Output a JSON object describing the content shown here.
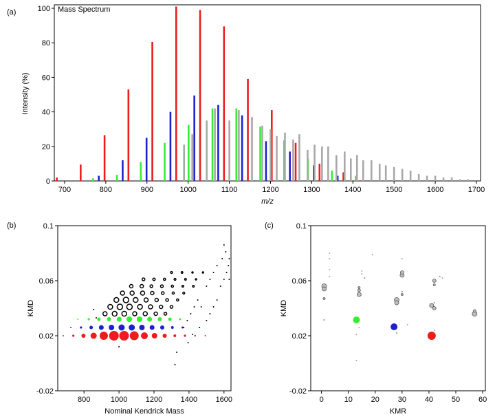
{
  "chart_data": [
    {
      "panel_label": "(a)",
      "type": "bar",
      "title": "Mass Spectrum",
      "xlabel": "m/z",
      "ylabel": "Intensity (%)",
      "xlim": [
        675,
        1710
      ],
      "ylim": [
        0,
        102
      ],
      "xticks": [
        700,
        800,
        900,
        1000,
        1100,
        1200,
        1300,
        1400,
        1500,
        1600,
        1700
      ],
      "yticks": [
        0,
        20,
        40,
        60,
        80,
        100
      ],
      "grid": false,
      "colors": {
        "red": "#ee1c1c",
        "blue": "#1f1fd0",
        "green": "#33ee33",
        "gray": "#a8a8a8"
      },
      "series": [
        {
          "color": "red",
          "x": [
            681,
            739,
            797,
            855,
            913,
            971,
            1029,
            1087,
            1145,
            1203,
            1261,
            1319,
            1377
          ],
          "values": [
            2,
            9.5,
            26.5,
            53,
            80.5,
            101,
            99,
            89.5,
            59,
            41,
            22,
            10,
            5
          ]
        },
        {
          "color": "blue",
          "x": [
            783,
            841,
            899,
            957,
            1015,
            1073,
            1131,
            1189,
            1247,
            1305,
            1363
          ],
          "values": [
            3,
            12,
            25,
            40,
            49.5,
            44,
            38,
            23,
            17,
            9,
            3
          ]
        },
        {
          "color": "green",
          "x": [
            769,
            827,
            885,
            943,
            1001,
            1059,
            1117,
            1175,
            1233,
            1291,
            1349,
            1407
          ],
          "values": [
            1.5,
            3.5,
            11,
            22,
            32.5,
            42,
            42,
            31.5,
            23.5,
            13,
            6,
            3
          ]
        },
        {
          "color": "gray",
          "x": [
            990,
            1010,
            1045,
            1065,
            1100,
            1123,
            1155,
            1180,
            1200,
            1215,
            1235,
            1255,
            1270,
            1290,
            1307,
            1325,
            1340,
            1360,
            1380,
            1395,
            1410,
            1425,
            1445,
            1465,
            1480,
            1500,
            1520,
            1540,
            1560,
            1580,
            1600,
            1620,
            1640,
            1660,
            1680
          ],
          "values": [
            21,
            27,
            35,
            42,
            35,
            41,
            37,
            32,
            30,
            26,
            28,
            24,
            27,
            18,
            21,
            20,
            20,
            15,
            17,
            13,
            15,
            12,
            12,
            10,
            9,
            8,
            7,
            6,
            4,
            3,
            3,
            2,
            2,
            1,
            1
          ]
        }
      ]
    },
    {
      "panel_label": "(b)",
      "type": "scatter",
      "xlabel": "Nominal Kendrick Mass",
      "ylabel": "KMD",
      "xlim": [
        650,
        1640
      ],
      "ylim": [
        -0.02,
        0.1
      ],
      "xticks": [
        800,
        1000,
        1200,
        1400,
        1600
      ],
      "yticks": [
        -0.02,
        0.02,
        0.06,
        0.1
      ],
      "colors": {
        "red": "#ee1c1c",
        "blue": "#1f1fd0",
        "green": "#33ee33",
        "gray": "#a8a8a8",
        "black": "#000000"
      },
      "series": [
        {
          "color": "red",
          "points": [
            [
              681,
              0.02,
              1
            ],
            [
              739,
              0.02,
              1.6
            ],
            [
              797,
              0.02,
              3
            ],
            [
              855,
              0.02,
              4.5
            ],
            [
              913,
              0.02,
              6
            ],
            [
              971,
              0.02,
              7
            ],
            [
              1029,
              0.02,
              7
            ],
            [
              1087,
              0.02,
              6.5
            ],
            [
              1145,
              0.02,
              5
            ],
            [
              1203,
              0.02,
              4
            ],
            [
              1261,
              0.02,
              3
            ],
            [
              1319,
              0.02,
              2
            ],
            [
              1377,
              0.02,
              1.6
            ],
            [
              1435,
              0.02,
              1.2
            ],
            [
              1493,
              0.02,
              1
            ]
          ]
        },
        {
          "color": "blue",
          "points": [
            [
              725,
              0.026,
              1
            ],
            [
              783,
              0.026,
              1.6
            ],
            [
              841,
              0.026,
              2.5
            ],
            [
              899,
              0.026,
              3.5
            ],
            [
              957,
              0.026,
              4
            ],
            [
              1015,
              0.026,
              4.5
            ],
            [
              1073,
              0.026,
              4.5
            ],
            [
              1131,
              0.026,
              4
            ],
            [
              1189,
              0.026,
              3.5
            ],
            [
              1247,
              0.026,
              3
            ],
            [
              1305,
              0.026,
              2
            ],
            [
              1363,
              0.026,
              1.5
            ]
          ]
        },
        {
          "color": "green",
          "points": [
            [
              765,
              0.032,
              1
            ],
            [
              827,
              0.032,
              1.6
            ],
            [
              885,
              0.032,
              2.5
            ],
            [
              943,
              0.032,
              3
            ],
            [
              1001,
              0.032,
              3.5
            ],
            [
              1059,
              0.032,
              4
            ],
            [
              1117,
              0.032,
              4
            ],
            [
              1175,
              0.032,
              3.5
            ],
            [
              1233,
              0.032,
              3
            ],
            [
              1291,
              0.032,
              2.5
            ],
            [
              1349,
              0.032,
              1.5
            ]
          ]
        },
        {
          "color": "black",
          "hollow": true,
          "points": [
            [
              920,
              0.036,
              3
            ],
            [
              975,
              0.036,
              3.5
            ],
            [
              1030,
              0.036,
              3.5
            ],
            [
              1090,
              0.036,
              3
            ],
            [
              1150,
              0.036,
              3
            ],
            [
              1210,
              0.036,
              2.5
            ],
            [
              1265,
              0.036,
              2
            ],
            [
              950,
              0.041,
              3.5
            ],
            [
              1005,
              0.041,
              4
            ],
            [
              1060,
              0.041,
              4
            ],
            [
              1120,
              0.041,
              3.5
            ],
            [
              1180,
              0.041,
              3
            ],
            [
              1240,
              0.041,
              2.5
            ],
            [
              1300,
              0.041,
              2
            ],
            [
              985,
              0.046,
              3.5
            ],
            [
              1040,
              0.046,
              4
            ],
            [
              1095,
              0.046,
              3.5
            ],
            [
              1155,
              0.046,
              3
            ],
            [
              1215,
              0.046,
              2.5
            ],
            [
              1275,
              0.046,
              2
            ],
            [
              1335,
              0.046,
              1.6
            ],
            [
              1020,
              0.051,
              3
            ],
            [
              1075,
              0.051,
              3
            ],
            [
              1135,
              0.051,
              3
            ],
            [
              1190,
              0.051,
              2.5
            ],
            [
              1250,
              0.051,
              2
            ],
            [
              1310,
              0.051,
              1.6
            ],
            [
              1370,
              0.051,
              1.4
            ],
            [
              1070,
              0.056,
              2.5
            ],
            [
              1130,
              0.056,
              2.5
            ],
            [
              1185,
              0.056,
              2
            ],
            [
              1245,
              0.056,
              2
            ],
            [
              1305,
              0.056,
              1.6
            ],
            [
              1365,
              0.056,
              1.3
            ],
            [
              1425,
              0.056,
              1.2
            ],
            [
              1140,
              0.061,
              2
            ],
            [
              1200,
              0.061,
              1.8
            ],
            [
              1260,
              0.061,
              1.6
            ],
            [
              1320,
              0.061,
              1.4
            ],
            [
              1380,
              0.061,
              1.2
            ],
            [
              1440,
              0.061,
              1
            ],
            [
              1300,
              0.066,
              1.4
            ],
            [
              1360,
              0.066,
              1.2
            ],
            [
              1420,
              0.066,
              1
            ],
            [
              1480,
              0.066,
              1
            ]
          ]
        },
        {
          "color": "black",
          "points": [
            [
              855,
              0.039,
              1
            ],
            [
              870,
              0.033,
              1
            ],
            [
              1000,
              0.012,
              1
            ],
            [
              1330,
              0.008,
              1
            ],
            [
              1320,
              -0.001,
              1
            ],
            [
              1395,
              0.015,
              1
            ],
            [
              1420,
              0.021,
              1
            ],
            [
              1460,
              0.026,
              1
            ],
            [
              1500,
              0.031,
              1
            ],
            [
              1520,
              0.036,
              1
            ],
            [
              1540,
              0.041,
              1
            ],
            [
              1560,
              0.046,
              1
            ],
            [
              1580,
              0.056,
              1
            ],
            [
              1600,
              0.061,
              1
            ],
            [
              1615,
              0.066,
              1
            ],
            [
              1625,
              0.071,
              1
            ],
            [
              1610,
              0.081,
              1
            ],
            [
              1590,
              0.076,
              1
            ],
            [
              1560,
              0.071,
              1
            ],
            [
              1540,
              0.066,
              1
            ],
            [
              1520,
              0.061,
              1
            ],
            [
              1500,
              0.056,
              1
            ],
            [
              1600,
              0.086,
              1
            ],
            [
              1630,
              0.076,
              1
            ],
            [
              1630,
              0.061,
              1
            ],
            [
              1470,
              0.041,
              1
            ],
            [
              1450,
              0.046,
              1
            ],
            [
              1430,
              0.041,
              1
            ],
            [
              1410,
              0.036,
              1
            ],
            [
              1390,
              0.031,
              1
            ],
            [
              1370,
              0.026,
              1
            ]
          ]
        }
      ]
    },
    {
      "panel_label": "(c)",
      "type": "scatter",
      "xlabel": "KMR",
      "ylabel": "KMD",
      "xlim": [
        -4,
        61
      ],
      "ylim": [
        -0.02,
        0.1
      ],
      "xticks": [
        0,
        10,
        20,
        30,
        40,
        50,
        60
      ],
      "yticks": [
        -0.02,
        0.02,
        0.06,
        0.1
      ],
      "colors": {
        "red": "#ee1c1c",
        "blue": "#1f1fd0",
        "green": "#33ee33",
        "gray": "#a8a8a8",
        "black": "#000000"
      },
      "series": [
        {
          "color": "red",
          "points": [
            [
              41,
              0.02,
              6
            ]
          ]
        },
        {
          "color": "blue",
          "points": [
            [
              27,
              0.0265,
              5
            ]
          ]
        },
        {
          "color": "green",
          "points": [
            [
              13,
              0.0315,
              5
            ]
          ]
        },
        {
          "color": "gray",
          "points": [
            [
              1,
              0.056,
              3.5
            ],
            [
              1,
              0.054,
              3
            ],
            [
              1,
              0.047,
              1.5
            ],
            [
              1,
              0.0315,
              1.2
            ],
            [
              3,
              0.063,
              1
            ],
            [
              3,
              0.068,
              1
            ],
            [
              3,
              0.076,
              1
            ],
            [
              3,
              0.08,
              1
            ],
            [
              14,
              0.05,
              3
            ],
            [
              14,
              0.053,
              2
            ],
            [
              14,
              0.055,
              1.5
            ],
            [
              14,
              0.026,
              1
            ],
            [
              15,
              0.065,
              1
            ],
            [
              15,
              0.067,
              1
            ],
            [
              16,
              0.062,
              1.2
            ],
            [
              13,
              0.021,
              1
            ],
            [
              13,
              0.002,
              1
            ],
            [
              19,
              0.079,
              1
            ],
            [
              28,
              0.046,
              3.5
            ],
            [
              28,
              0.044,
              3
            ],
            [
              28,
              0.022,
              1.2
            ],
            [
              30,
              0.064,
              3
            ],
            [
              30,
              0.066,
              2.5
            ],
            [
              30,
              0.05,
              1.5
            ],
            [
              30,
              0.052,
              1.2
            ],
            [
              30,
              0.076,
              1
            ],
            [
              32,
              0.028,
              1
            ],
            [
              41,
              0.042,
              3
            ],
            [
              42,
              0.04,
              2.5
            ],
            [
              42,
              0.06,
              2.5
            ],
            [
              42,
              0.057,
              1.5
            ],
            [
              42,
              0.044,
              1.2
            ],
            [
              42,
              0.024,
              1
            ],
            [
              44,
              0.063,
              1.2
            ],
            [
              45,
              0.062,
              1
            ],
            [
              57,
              0.036,
              3.5
            ],
            [
              57,
              0.038,
              2
            ]
          ]
        }
      ]
    }
  ]
}
